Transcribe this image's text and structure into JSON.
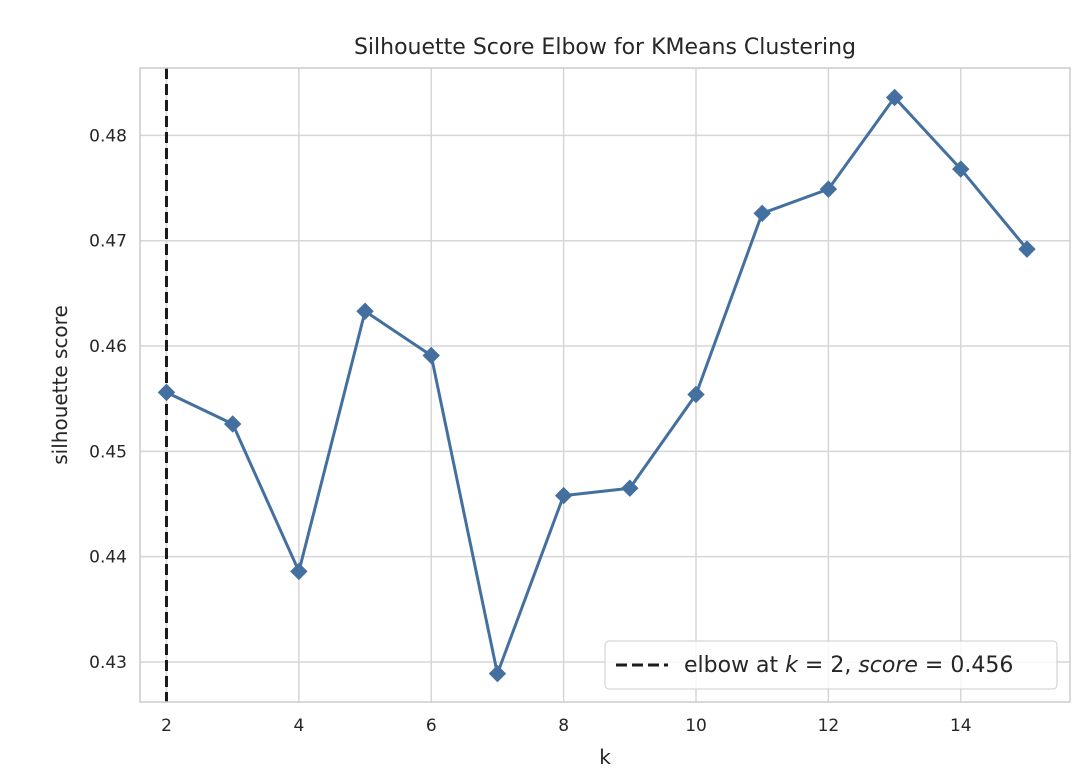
{
  "chart_data": {
    "type": "line",
    "title": "Silhouette Score Elbow for KMeans Clustering",
    "xlabel": "k",
    "ylabel": "silhouette score",
    "x": [
      2,
      3,
      4,
      5,
      6,
      7,
      8,
      9,
      10,
      11,
      12,
      13,
      14,
      15
    ],
    "series": [
      {
        "values": [
          0.4556,
          0.4526,
          0.4386,
          0.4633,
          0.4591,
          0.4289,
          0.4458,
          0.4465,
          0.4554,
          0.4726,
          0.4749,
          0.4836,
          0.4768,
          0.4692
        ],
        "color": "#4470a0",
        "marker": "diamond"
      }
    ],
    "xlim": [
      1.6,
      15.65
    ],
    "ylim": [
      0.4262,
      0.4864
    ],
    "xticks": [
      2,
      4,
      6,
      8,
      10,
      12,
      14
    ],
    "xtick_labels": [
      "2",
      "4",
      "6",
      "8",
      "10",
      "12",
      "14"
    ],
    "yticks": [
      0.43,
      0.44,
      0.45,
      0.46,
      0.47,
      0.48
    ],
    "ytick_labels": [
      "0.43",
      "0.44",
      "0.45",
      "0.46",
      "0.47",
      "0.48"
    ],
    "grid": true,
    "elbow": {
      "x": 2,
      "color": "#1a1a1a",
      "legend_prefix": "elbow at ",
      "k_symbol": "k",
      "k_text": " = 2, ",
      "score_symbol": "score",
      "score_text": " = 0.456"
    },
    "legend_position": "bottom-right",
    "grid_color": "#d6d6d6",
    "frame_color": "#cccccc"
  }
}
